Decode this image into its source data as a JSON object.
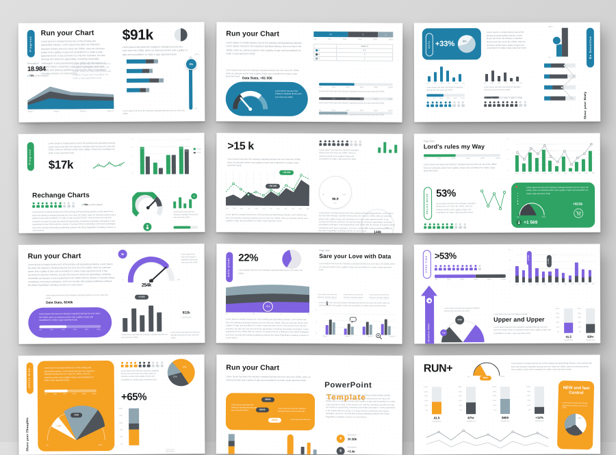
{
  "page": {
    "background": "#d7d7d7"
  },
  "colors": {
    "blue": "#1f7fa7",
    "slate": "#8fa6b1",
    "dark": "#4e545a",
    "green": "#2fa364",
    "purple": "#7f62e0",
    "orange": "#f5a122"
  },
  "lorem": {
    "xs": "Lorem Ipsum has been the industry's standard dummy text ever since the 1500s.",
    "s": "Lorem Ipsum has been the industry's standard dummy text ever since the 1500s, when an unknown printer took a galley of type and scrambled it to make a type specimen book.",
    "m": "Lorem Ipsum is simply dummy text of the printing and typesetting industry. Lorem Ipsum has been the industry's standard dummy text ever since the 1500s, when an unknown printer took a galley of type and scrambled it to make a type specimen book.",
    "l": "Lorem Ipsum is simply dummy text of the printing and typesetting industry. Lorem Ipsum has been the industry's standard dummy text ever since the 1500s, when an unknown printer took a galley of type and scrambled it to make a type specimen book. It has survived not only five centuries, but also the leap into electronic typesetting, remaining essentially unchanged. It was popularised in the 1960s with the release of Letraset sheets containing Lorem Ipsum passages, and more recently with desktop publishing software like Aldus PageMaker including versions of Lorem Ipsum."
  },
  "axes": {
    "pct_asc": [
      "0%",
      "20%",
      "40%",
      "60%",
      "80%",
      "100%"
    ],
    "pct_desc": [
      "100%",
      "80%",
      "60%",
      "40%",
      "20%",
      "0%"
    ],
    "minmax": [
      "0%",
      "100%"
    ]
  },
  "months_h1": [
    "Jan",
    "Feb",
    "Mar",
    "Apr",
    "May",
    "Jun"
  ],
  "months_h2": [
    "Jul",
    "Aug",
    "Sep",
    "Oct",
    "Nov",
    "Dec"
  ],
  "months_all": [
    "Jan",
    "Feb",
    "Mar",
    "Apr",
    "May",
    "Jun",
    "Jul",
    "Aug",
    "Sep",
    "Oct",
    "Nov",
    "Dec"
  ],
  "ticks": {
    "y5": [
      "4",
      "3",
      "2",
      "1",
      "0"
    ],
    "y4": [
      "4",
      "2",
      "0"
    ],
    "y6": [
      "6",
      "4",
      "2",
      "0"
    ],
    "y12": [
      "12",
      "8",
      "4",
      "0"
    ]
  },
  "slides": {
    "s1": {
      "pill": "Progress",
      "title": "Run your Chart",
      "stat_label": "Description",
      "stat_value": "18.984",
      "stat_pct": "78%",
      "stat_note": "Lorem ipsum",
      "stages": [
        "Stage I",
        "Stage II",
        "Stage III",
        "Stage IV"
      ],
      "big": "$91k",
      "slider_badge": "9%"
    },
    "s2": {
      "title": "Run your Chart",
      "bar_labels": [
        "4.1",
        "3",
        "2"
      ],
      "table_header": "Week 01",
      "rows": [
        {
          "k": "A",
          "v": "4.1"
        },
        {
          "k": "B",
          "v": "3"
        },
        {
          "k": "C",
          "v": "2"
        }
      ],
      "gauge_label": "Data Stats, +91 000"
    },
    "s3": {
      "card_pill": "DATA",
      "card_value": "+33%",
      "pie_label": "60%",
      "side_pill": "Be Sensitive",
      "script": "Move your Body",
      "picto1": {
        "filled": 6,
        "total": 9
      },
      "picto2": {
        "filled": 8,
        "total": 10
      }
    },
    "s4": {
      "pill": "Progress",
      "big": "$17k",
      "heading": "Rechange Charts",
      "stat_pct": "78%",
      "stat_note": "Lorem ipsum",
      "label_a": "4.3",
      "label_b": "4.3",
      "label_c": "4.2",
      "picto": {
        "filled": 7,
        "total": 10
      }
    },
    "s5": {
      "big": ">15 k",
      "badge_green": "+36 000",
      "badge_dark": "+89 000",
      "g1_value": "$6.9",
      "g2_value": "144k",
      "picto": {
        "filled": 7,
        "total": 10
      }
    },
    "s6": {
      "kicker": "Page Start",
      "title": "Lord's rules my Way",
      "big": "53%",
      "side_pill": "RELAX MOVE",
      "value_person": "+1 569",
      "value_ring": "+$13k",
      "picto": {
        "filled": 7,
        "total": 10
      }
    },
    "s7": {
      "title": "Run your Chart",
      "gauge_value": "254k",
      "gauge_badge": "3k",
      "gauge_ticks": [
        "0",
        "50",
        "100"
      ],
      "data_label": "Data Stats, $240k",
      "pill": "+2 455",
      "donut_value": "$12k",
      "donut_sub": "Lorem ipsum"
    },
    "s8": {
      "pill": "DATA START",
      "big": "22%",
      "badge": "+4.1",
      "area_x": [
        "A",
        "B",
        "C",
        "D"
      ],
      "kicker": "Page Start",
      "title": "Sare your Love with Data",
      "weeks": [
        "Week 1",
        "Week 2",
        "Week 3",
        "Week 4"
      ]
    },
    "s9": {
      "pill": "OPEN TIME",
      "big": ">53%",
      "badge_purple": "+2 000",
      "badge_dark": "+1 000",
      "arrow_label": "Attractive Route",
      "title": "Upper and Upper",
      "fan_badge1": "4.6k",
      "fan_badge2": "+1k",
      "t1_value": "41.5",
      "t2_value": "$3hr",
      "sample": "Sample text",
      "picto": {
        "filled": 10,
        "total": 11
      }
    },
    "s10": {
      "pill": "CRACK MIND",
      "script": "Share your Thoughts",
      "big": "+65%",
      "pie1": "42%",
      "pie2": "31%",
      "badge1": "3 865",
      "badge2": "1 465",
      "picto": {
        "filled": 4,
        "mid": 3,
        "total": 10
      }
    },
    "s11": {
      "title": "Run your Chart",
      "brand1": "PowerPoint",
      "brand2": "Template",
      "pill1": "$890k",
      "pill2": "$460k",
      "pill3": "$250k",
      "stat_label": "Description",
      "stat_value": "10.38k",
      "stat2_label": "Description",
      "stat2_value": "+2.4k"
    },
    "s12": {
      "big": "RUN+",
      "gauge_badge": "$600",
      "card_title": "NEW and fast Control",
      "pie1": "7.3%",
      "pie2": "20%",
      "thermos": [
        {
          "v": "41.5",
          "t": "Sample text"
        },
        {
          "v": "$7hr",
          "t": "Sample text"
        },
        {
          "v": "$800",
          "t": "Sample text"
        },
        {
          "v": "+12%",
          "t": "Sample text"
        }
      ]
    }
  }
}
